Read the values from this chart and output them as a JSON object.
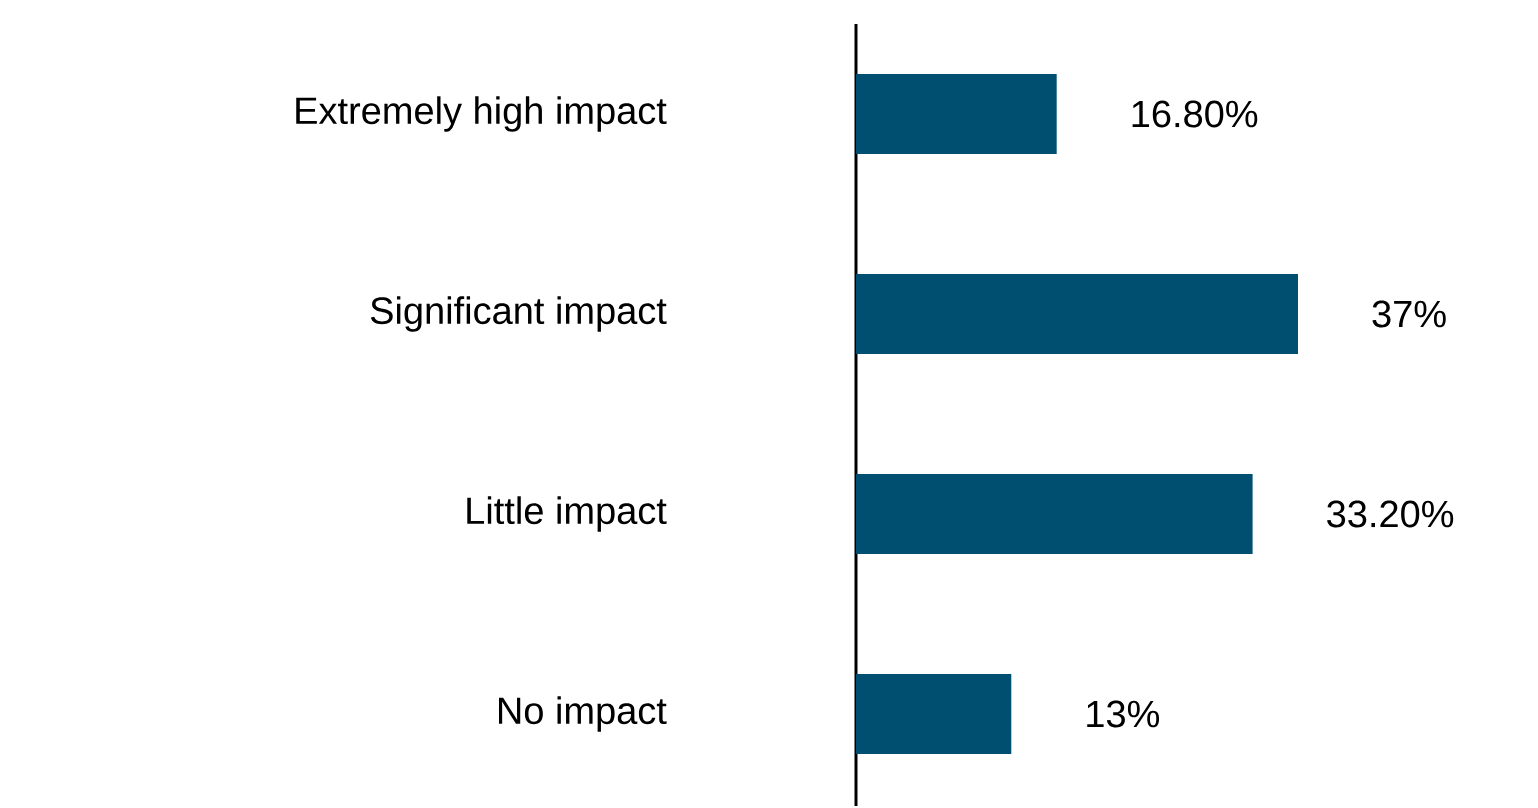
{
  "chart_data": {
    "type": "bar",
    "orientation": "horizontal",
    "categories": [
      "Extremely high impact",
      "Significant impact",
      "Little impact",
      "No impact"
    ],
    "values": [
      16.8,
      37,
      33.2,
      13
    ],
    "value_labels": [
      "16.80%",
      "37%",
      "33.20%",
      "13%"
    ],
    "color": "#004f71",
    "tick_labels": "y"
  }
}
